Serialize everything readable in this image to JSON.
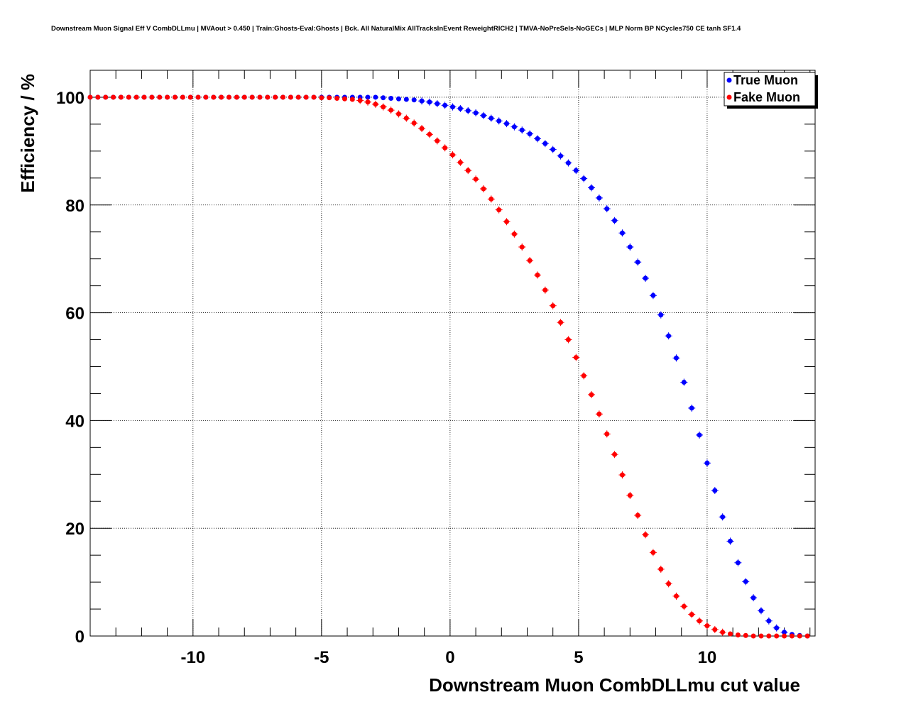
{
  "chart_data": {
    "type": "scatter",
    "title": "Downstream Muon Signal Eff V CombDLLmu | MVAout > 0.450 | Train:Ghosts-Eval:Ghosts | Bck. All NaturalMix AllTracksInEvent ReweightRICH2 | TMVA-NoPreSels-NoGECs | MLP Norm BP NCycles750 CE tanh SF1.4",
    "xlabel": "Downstream Muon CombDLLmu cut value",
    "ylabel": "Efficiency / %",
    "xlim": [
      -14,
      14.2
    ],
    "ylim": [
      0,
      105
    ],
    "xticks": [
      -10,
      -5,
      0,
      5,
      10
    ],
    "xtick_labels": [
      "-10",
      "-5",
      "0",
      "5",
      "10"
    ],
    "yticks": [
      0,
      20,
      40,
      60,
      80,
      100
    ],
    "ytick_labels": [
      "0",
      "20",
      "40",
      "60",
      "80",
      "100"
    ],
    "grid": true,
    "legend_position": "top-right",
    "x": [
      -14.0,
      -13.7,
      -13.4,
      -13.1,
      -12.8,
      -12.5,
      -12.2,
      -11.9,
      -11.6,
      -11.3,
      -11.0,
      -10.7,
      -10.4,
      -10.1,
      -9.8,
      -9.5,
      -9.2,
      -8.9,
      -8.6,
      -8.3,
      -8.0,
      -7.7,
      -7.4,
      -7.1,
      -6.8,
      -6.5,
      -6.2,
      -5.9,
      -5.6,
      -5.3,
      -5.0,
      -4.7,
      -4.4,
      -4.1,
      -3.8,
      -3.5,
      -3.2,
      -2.9,
      -2.6,
      -2.3,
      -2.0,
      -1.7,
      -1.4,
      -1.1,
      -0.8,
      -0.5,
      -0.2,
      0.1,
      0.4,
      0.7,
      1.0,
      1.3,
      1.6,
      1.9,
      2.2,
      2.5,
      2.8,
      3.1,
      3.4,
      3.7,
      4.0,
      4.3,
      4.6,
      4.9,
      5.2,
      5.5,
      5.8,
      6.1,
      6.4,
      6.7,
      7.0,
      7.3,
      7.6,
      7.9,
      8.2,
      8.5,
      8.8,
      9.1,
      9.4,
      9.7,
      10.0,
      10.3,
      10.6,
      10.9,
      11.2,
      11.5,
      11.8,
      12.1,
      12.4,
      12.7,
      13.0,
      13.3,
      13.6,
      13.9
    ],
    "series": [
      {
        "name": "True Muon",
        "color": "#0000ff",
        "values": [
          100,
          100,
          100,
          100,
          100,
          100,
          100,
          100,
          100,
          100,
          100,
          100,
          100,
          100,
          100,
          100,
          100,
          100,
          100,
          100,
          100,
          100,
          100,
          100,
          100,
          100,
          100,
          100,
          100,
          100,
          100,
          100,
          100,
          100,
          100,
          100,
          100,
          100,
          99.9,
          99.8,
          99.7,
          99.6,
          99.5,
          99.3,
          99.1,
          98.8,
          98.5,
          98.2,
          97.9,
          97.5,
          97.1,
          96.6,
          96.1,
          95.6,
          95.1,
          94.5,
          93.9,
          93.2,
          92.3,
          91.4,
          90.3,
          89.1,
          87.8,
          86.4,
          84.9,
          83.2,
          81.3,
          79.3,
          77.1,
          74.8,
          72.2,
          69.4,
          66.4,
          63.2,
          59.6,
          55.7,
          51.6,
          47.1,
          42.3,
          37.3,
          32.1,
          27.0,
          22.1,
          17.6,
          13.6,
          10.1,
          7.1,
          4.7,
          2.8,
          1.5,
          0.7,
          0.3,
          0.1,
          0.0
        ]
      },
      {
        "name": "Fake Muon",
        "color": "#ff0000",
        "values": [
          100,
          100,
          100,
          100,
          100,
          100,
          100,
          100,
          100,
          100,
          100,
          100,
          100,
          100,
          100,
          100,
          100,
          100,
          100,
          100,
          100,
          100,
          100,
          100,
          100,
          100,
          100,
          100,
          100,
          100,
          99.9,
          99.9,
          99.8,
          99.7,
          99.6,
          99.4,
          99.1,
          98.7,
          98.2,
          97.6,
          96.9,
          96.1,
          95.2,
          94.2,
          93.1,
          91.9,
          90.6,
          89.3,
          87.9,
          86.4,
          84.8,
          83.0,
          81.1,
          79.1,
          76.9,
          74.6,
          72.2,
          69.7,
          67.0,
          64.2,
          61.3,
          58.2,
          55.0,
          51.7,
          48.3,
          44.8,
          41.2,
          37.5,
          33.7,
          29.9,
          26.1,
          22.4,
          18.8,
          15.5,
          12.4,
          9.7,
          7.4,
          5.5,
          4.0,
          2.8,
          1.9,
          1.2,
          0.7,
          0.4,
          0.2,
          0.1,
          0.0,
          0.0,
          0.0,
          0.0,
          0.0,
          0.0,
          0.0,
          0.0
        ]
      }
    ]
  }
}
